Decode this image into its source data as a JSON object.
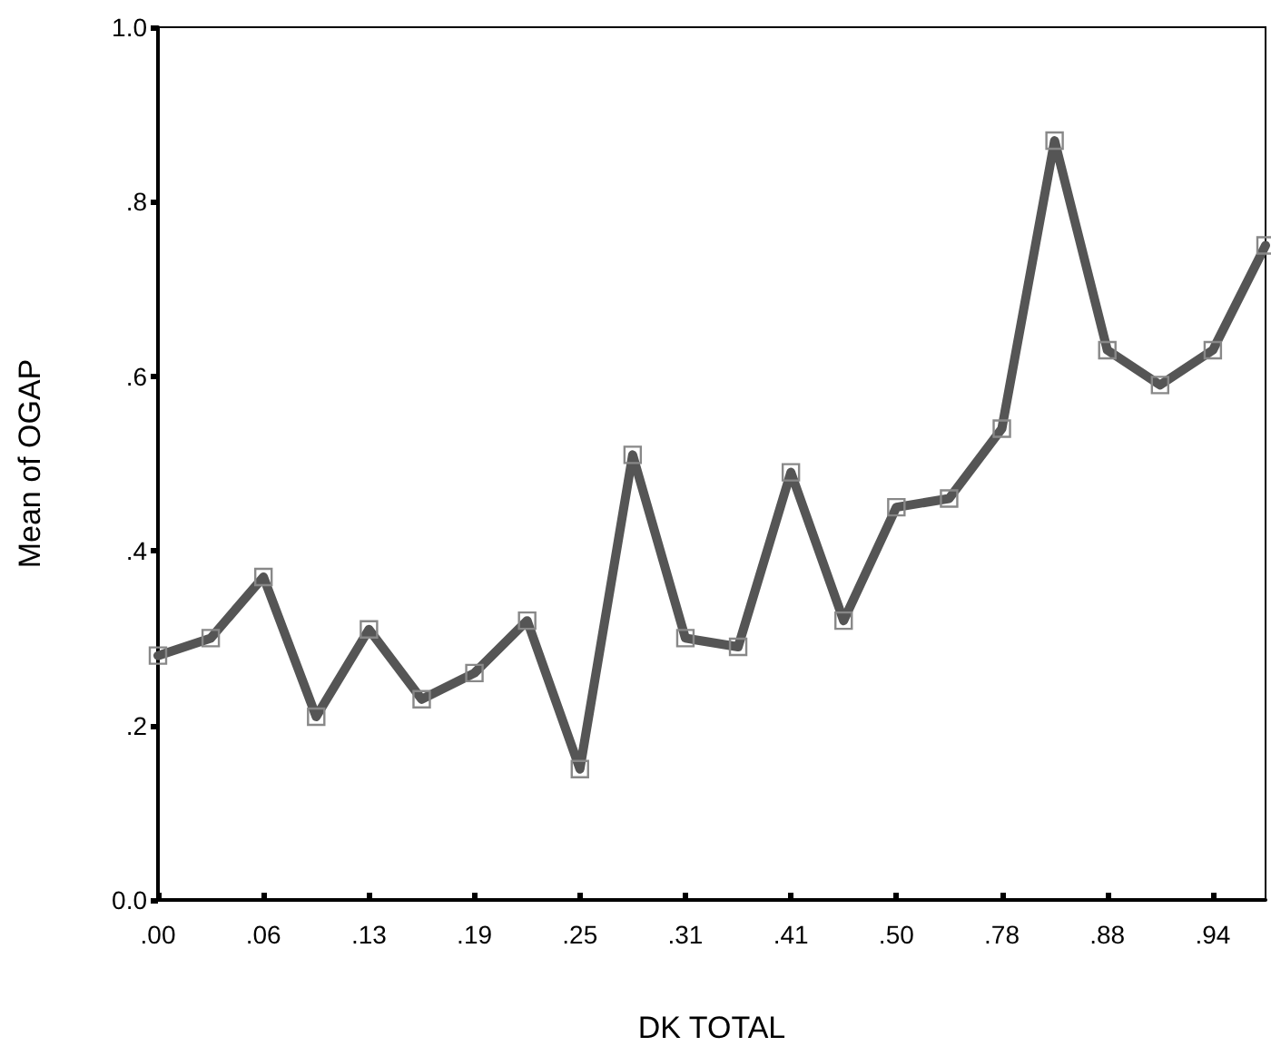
{
  "chart_data": {
    "type": "line",
    "xlabel": "DK TOTAL",
    "ylabel": "Mean of OGAP",
    "categories": [
      ".00",
      null,
      ".06",
      null,
      ".13",
      null,
      ".19",
      null,
      ".25",
      null,
      ".31",
      null,
      ".41",
      null,
      ".50",
      null,
      ".78",
      null,
      ".88",
      null,
      ".94",
      null
    ],
    "series": [
      {
        "color": "#555555",
        "values": [
          0.28,
          0.3,
          0.37,
          0.21,
          0.31,
          0.23,
          0.26,
          0.32,
          0.15,
          0.51,
          0.3,
          0.29,
          0.49,
          0.32,
          0.45,
          0.46,
          0.54,
          0.87,
          0.63,
          0.59,
          0.63,
          0.75
        ]
      }
    ],
    "ylim": [
      0,
      1
    ],
    "yticks": [
      {
        "value": 0,
        "label": "0.0"
      },
      {
        "value": 0.2,
        "label": ".2"
      },
      {
        "value": 0.4,
        "label": ".4"
      },
      {
        "value": 0.6,
        "label": ".6"
      },
      {
        "value": 0.8,
        "label": ".8"
      },
      {
        "value": 1,
        "label": "1.0"
      }
    ],
    "grid": false,
    "marker": "square",
    "line_style": "solid"
  }
}
